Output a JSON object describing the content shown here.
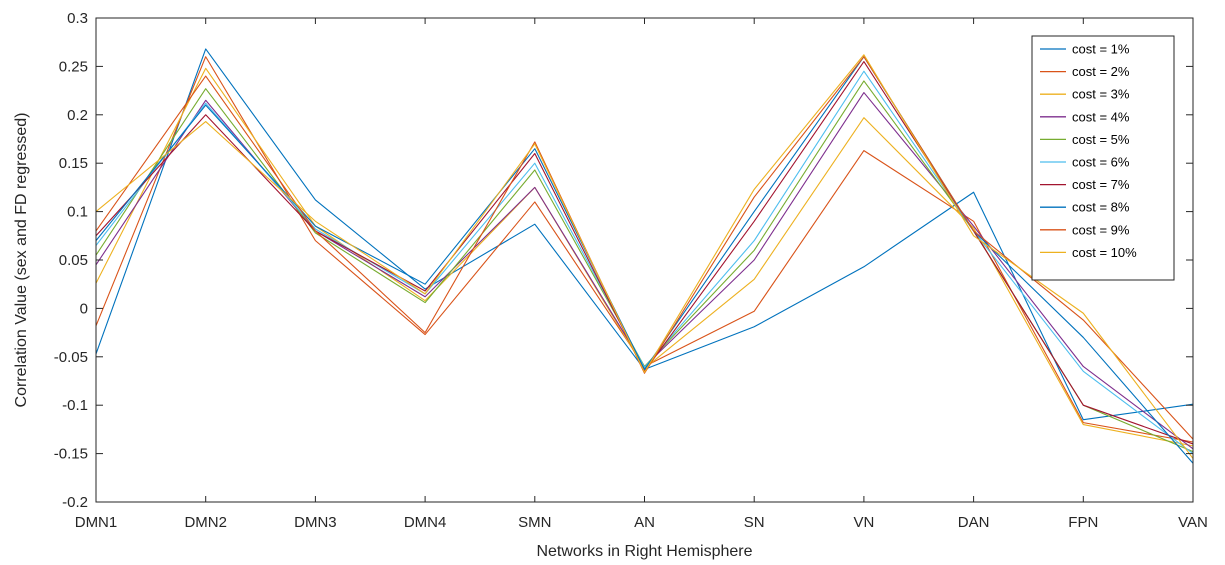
{
  "chart_data": {
    "type": "line",
    "xlabel": "Networks in Right Hemisphere",
    "ylabel": "Correlation Value (sex and FD regressed)",
    "categories": [
      "DMN1",
      "DMN2",
      "DMN3",
      "DMN4",
      "SMN",
      "AN",
      "SN",
      "VN",
      "DAN",
      "FPN",
      "VAN"
    ],
    "ylim": [
      -0.2,
      0.3
    ],
    "yticks": [
      -0.2,
      -0.15,
      -0.1,
      -0.05,
      0,
      0.05,
      0.1,
      0.15,
      0.2,
      0.25,
      0.3
    ],
    "ytick_labels": [
      "-0.2",
      "-0.15",
      "-0.1",
      "-0.05",
      "0",
      "0.05",
      "0.1",
      "0.15",
      "0.2",
      "0.25",
      "0.3"
    ],
    "grid": false,
    "legend_position": "top-right",
    "series": [
      {
        "name": "cost = 1%",
        "color": "#0072BD",
        "values": [
          -0.047,
          0.268,
          0.112,
          0.02,
          0.087,
          -0.063,
          -0.019,
          0.043,
          0.12,
          -0.115,
          -0.099
        ]
      },
      {
        "name": "cost = 2%",
        "color": "#D95319",
        "values": [
          -0.018,
          0.26,
          0.07,
          -0.027,
          0.11,
          -0.06,
          -0.003,
          0.163,
          0.09,
          -0.118,
          -0.138
        ]
      },
      {
        "name": "cost = 3%",
        "color": "#EDB120",
        "values": [
          0.026,
          0.248,
          0.085,
          0.008,
          0.125,
          -0.062,
          0.03,
          0.197,
          0.083,
          -0.12,
          -0.142
        ]
      },
      {
        "name": "cost = 4%",
        "color": "#7E2F8E",
        "values": [
          0.045,
          0.215,
          0.08,
          0.012,
          0.125,
          -0.06,
          0.05,
          0.223,
          0.085,
          -0.06,
          -0.145
        ]
      },
      {
        "name": "cost = 5%",
        "color": "#77AC30",
        "values": [
          0.055,
          0.227,
          0.078,
          0.006,
          0.143,
          -0.06,
          0.06,
          0.235,
          0.08,
          -0.1,
          -0.148
        ]
      },
      {
        "name": "cost = 6%",
        "color": "#4DBEEE",
        "values": [
          0.065,
          0.212,
          0.082,
          0.015,
          0.15,
          -0.061,
          0.07,
          0.245,
          0.08,
          -0.065,
          -0.15
        ]
      },
      {
        "name": "cost = 7%",
        "color": "#A2142F",
        "values": [
          0.075,
          0.2,
          0.08,
          0.018,
          0.16,
          -0.065,
          0.09,
          0.255,
          0.08,
          -0.1,
          -0.14
        ]
      },
      {
        "name": "cost = 8%",
        "color": "#0072BD",
        "values": [
          0.07,
          0.21,
          0.085,
          0.025,
          0.165,
          -0.063,
          0.1,
          0.26,
          0.08,
          -0.03,
          -0.16
        ]
      },
      {
        "name": "cost = 9%",
        "color": "#D95319",
        "values": [
          0.08,
          0.24,
          0.08,
          -0.025,
          0.172,
          -0.067,
          0.115,
          0.26,
          0.08,
          -0.012,
          -0.135
        ]
      },
      {
        "name": "cost = 10%",
        "color": "#EDB120",
        "values": [
          0.1,
          0.193,
          0.09,
          0.015,
          0.17,
          -0.066,
          0.123,
          0.262,
          0.075,
          -0.005,
          -0.155
        ]
      }
    ]
  }
}
